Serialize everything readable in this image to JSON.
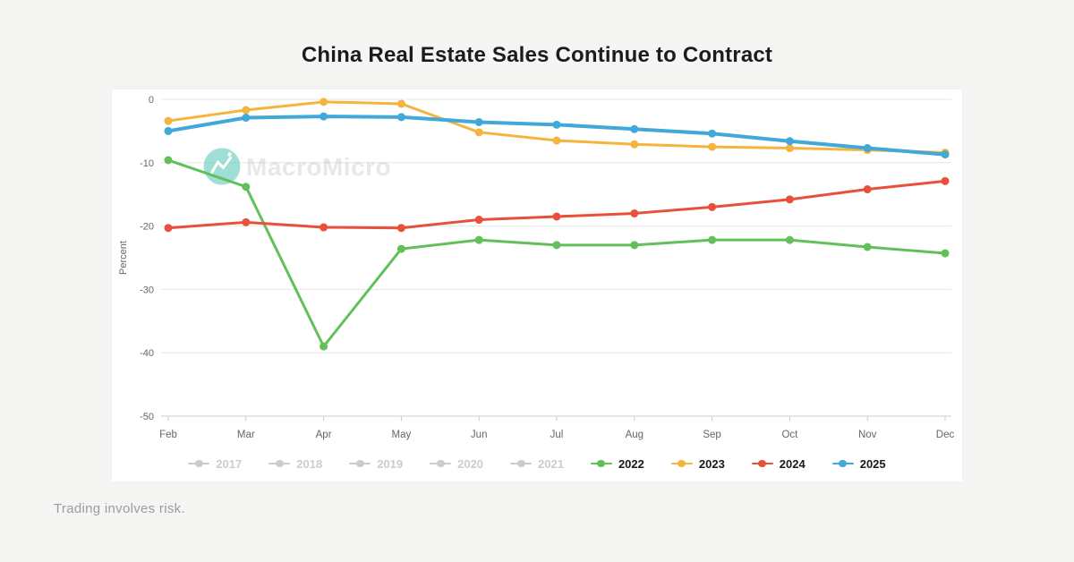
{
  "header": {
    "title": "China Real Estate Sales Continue to Contract"
  },
  "watermark": {
    "text": "MacroMicro",
    "logo_color": "#40bfab"
  },
  "footer": {
    "disclaimer": "Trading involves risk."
  },
  "chart_data": {
    "type": "line",
    "title": "China Real Estate Sales Continue to Contract",
    "categories": [
      "Feb",
      "Mar",
      "Apr",
      "May",
      "Jun",
      "Jul",
      "Aug",
      "Sep",
      "Oct",
      "Nov",
      "Dec"
    ],
    "xlabel": "",
    "ylabel": "Percent",
    "ylim": [
      -50,
      0
    ],
    "yticks": [
      0,
      -10,
      -20,
      -30,
      -40,
      -50
    ],
    "grid": true,
    "legend_position": "bottom",
    "axis_line_color": "#cccccc",
    "grid_color": "#e6e6e6",
    "tick_label_color": "#666666",
    "disabled_color": "#cccccc",
    "series": [
      {
        "name": "2022",
        "color": "#62c05a",
        "values": [
          -9.6,
          -13.8,
          -39.0,
          -23.6,
          -22.2,
          -23.0,
          -23.0,
          -22.2,
          -22.2,
          -23.3,
          -24.3
        ]
      },
      {
        "name": "2023",
        "color": "#f5b43d",
        "values": [
          -3.4,
          -1.7,
          -0.4,
          -0.7,
          -5.2,
          -6.5,
          -7.1,
          -7.5,
          -7.7,
          -8.0,
          -8.4
        ]
      },
      {
        "name": "2024",
        "color": "#e8503a",
        "values": [
          -20.3,
          -19.4,
          -20.2,
          -20.3,
          -19.0,
          -18.5,
          -18.0,
          -17.0,
          -15.8,
          -14.2,
          -12.9
        ]
      },
      {
        "name": "2025",
        "color": "#41a8da",
        "values": [
          -5.0,
          -2.9,
          -2.7,
          -2.8,
          -3.6,
          -4.0,
          -4.7,
          -5.4,
          -6.6,
          -7.7,
          -8.7
        ]
      }
    ],
    "legend": [
      {
        "label": "2017",
        "enabled": false
      },
      {
        "label": "2018",
        "enabled": false
      },
      {
        "label": "2019",
        "enabled": false
      },
      {
        "label": "2020",
        "enabled": false
      },
      {
        "label": "2021",
        "enabled": false
      },
      {
        "label": "2022",
        "enabled": true,
        "color": "#62c05a"
      },
      {
        "label": "2023",
        "enabled": true,
        "color": "#f5b43d"
      },
      {
        "label": "2024",
        "enabled": true,
        "color": "#e8503a"
      },
      {
        "label": "2025",
        "enabled": true,
        "color": "#41a8da"
      }
    ]
  }
}
